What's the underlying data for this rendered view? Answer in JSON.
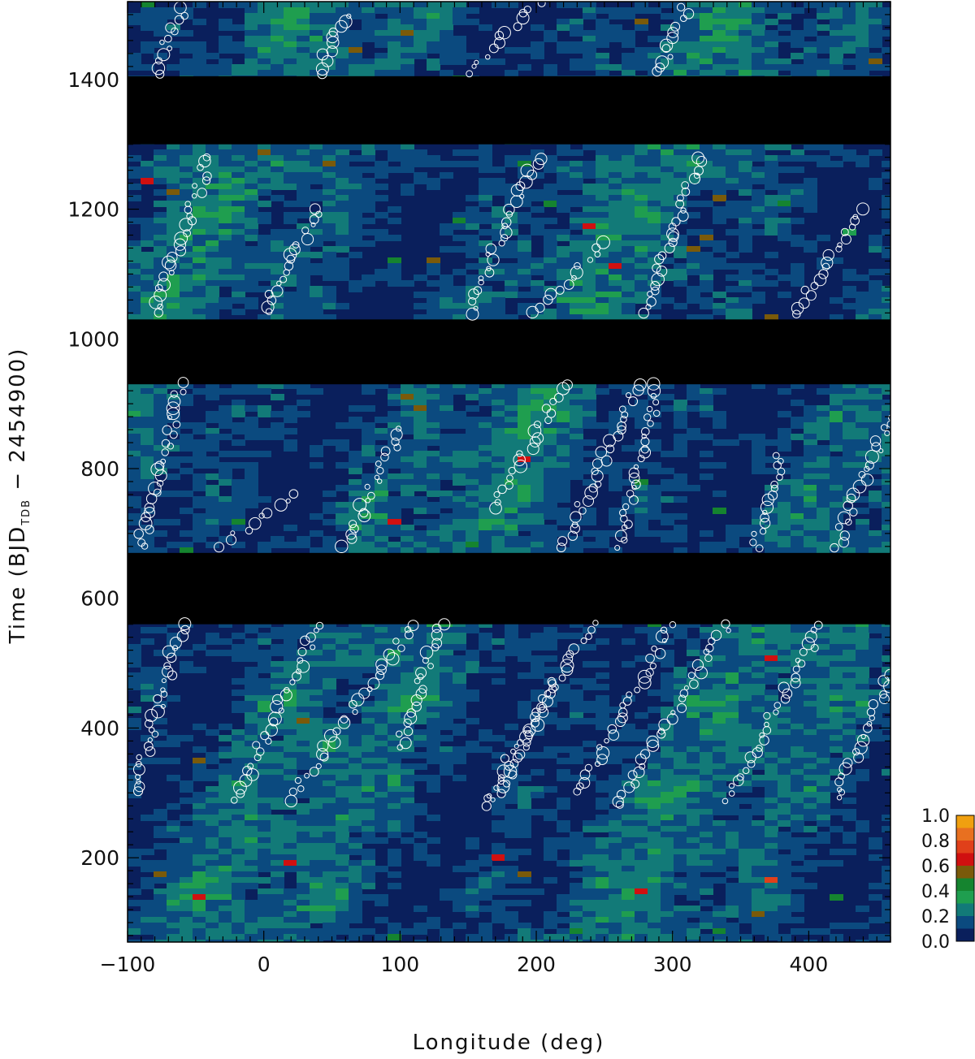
{
  "chart_data": {
    "type": "heatmap",
    "title": "",
    "xlabel": "Longitude (deg)",
    "ylabel_parts": {
      "prefix": "Time (BJD",
      "subscript": "TDB",
      "suffix": " − 2454900)"
    },
    "xlim": [
      -100,
      460
    ],
    "ylim": [
      70,
      1520
    ],
    "x_ticks": [
      -100,
      0,
      100,
      200,
      300,
      400
    ],
    "x_tick_labels": [
      "−100",
      "0",
      "100",
      "200",
      "300",
      "400"
    ],
    "y_ticks": [
      200,
      400,
      600,
      800,
      1000,
      1200,
      1400
    ],
    "y_tick_labels": [
      "200",
      "400",
      "600",
      "800",
      "1000",
      "1200",
      "1400"
    ],
    "data_gaps": [
      [
        560,
        670
      ],
      [
        930,
        1030
      ],
      [
        1300,
        1405
      ]
    ],
    "colorbar": {
      "ticks": [
        0.0,
        0.2,
        0.4,
        0.6,
        0.8,
        1.0
      ],
      "tick_labels": [
        "0.0",
        "0.2",
        "0.4",
        "0.6",
        "0.8",
        "1.0"
      ],
      "levels": [
        0.0,
        0.1,
        0.2,
        0.3,
        0.4,
        0.5,
        0.6,
        0.7,
        0.8,
        0.9,
        1.0
      ],
      "colors": [
        "#0a1f5c",
        "#0b4a7f",
        "#127a78",
        "#1f9e4f",
        "#15842f",
        "#7a5a0a",
        "#d01010",
        "#e0401a",
        "#e87020",
        "#f0a010"
      ]
    },
    "spot_tracks": [
      {
        "x": [
          -95,
          -60
        ],
        "y": [
          300,
          560
        ]
      },
      {
        "x": [
          -20,
          40
        ],
        "y": [
          290,
          560
        ]
      },
      {
        "x": [
          20,
          110
        ],
        "y": [
          290,
          560
        ]
      },
      {
        "x": [
          100,
          130
        ],
        "y": [
          370,
          560
        ]
      },
      {
        "x": [
          160,
          240
        ],
        "y": [
          280,
          560
        ]
      },
      {
        "x": [
          170,
          215
        ],
        "y": [
          290,
          470
        ]
      },
      {
        "x": [
          230,
          300
        ],
        "y": [
          300,
          560
        ]
      },
      {
        "x": [
          260,
          340
        ],
        "y": [
          280,
          560
        ]
      },
      {
        "x": [
          340,
          410
        ],
        "y": [
          290,
          560
        ]
      },
      {
        "x": [
          420,
          460
        ],
        "y": [
          290,
          480
        ]
      },
      {
        "x": [
          -90,
          -60
        ],
        "y": [
          680,
          930
        ]
      },
      {
        "x": [
          -30,
          20
        ],
        "y": [
          680,
          760
        ]
      },
      {
        "x": [
          60,
          100
        ],
        "y": [
          680,
          860
        ]
      },
      {
        "x": [
          170,
          220
        ],
        "y": [
          740,
          930
        ]
      },
      {
        "x": [
          220,
          275
        ],
        "y": [
          680,
          930
        ]
      },
      {
        "x": [
          260,
          290
        ],
        "y": [
          680,
          930
        ]
      },
      {
        "x": [
          360,
          380
        ],
        "y": [
          680,
          820
        ]
      },
      {
        "x": [
          420,
          460
        ],
        "y": [
          680,
          880
        ]
      },
      {
        "x": [
          -80,
          -40
        ],
        "y": [
          1040,
          1280
        ]
      },
      {
        "x": [
          0,
          40
        ],
        "y": [
          1040,
          1200
        ]
      },
      {
        "x": [
          150,
          200
        ],
        "y": [
          1040,
          1280
        ]
      },
      {
        "x": [
          200,
          250
        ],
        "y": [
          1040,
          1150
        ]
      },
      {
        "x": [
          280,
          320
        ],
        "y": [
          1040,
          1280
        ]
      },
      {
        "x": [
          390,
          440
        ],
        "y": [
          1040,
          1200
        ]
      },
      {
        "x": [
          -80,
          -60
        ],
        "y": [
          1410,
          1510
        ]
      },
      {
        "x": [
          40,
          60
        ],
        "y": [
          1410,
          1500
        ]
      },
      {
        "x": [
          150,
          200
        ],
        "y": [
          1410,
          1520
        ]
      },
      {
        "x": [
          290,
          310
        ],
        "y": [
          1410,
          1510
        ]
      }
    ]
  }
}
